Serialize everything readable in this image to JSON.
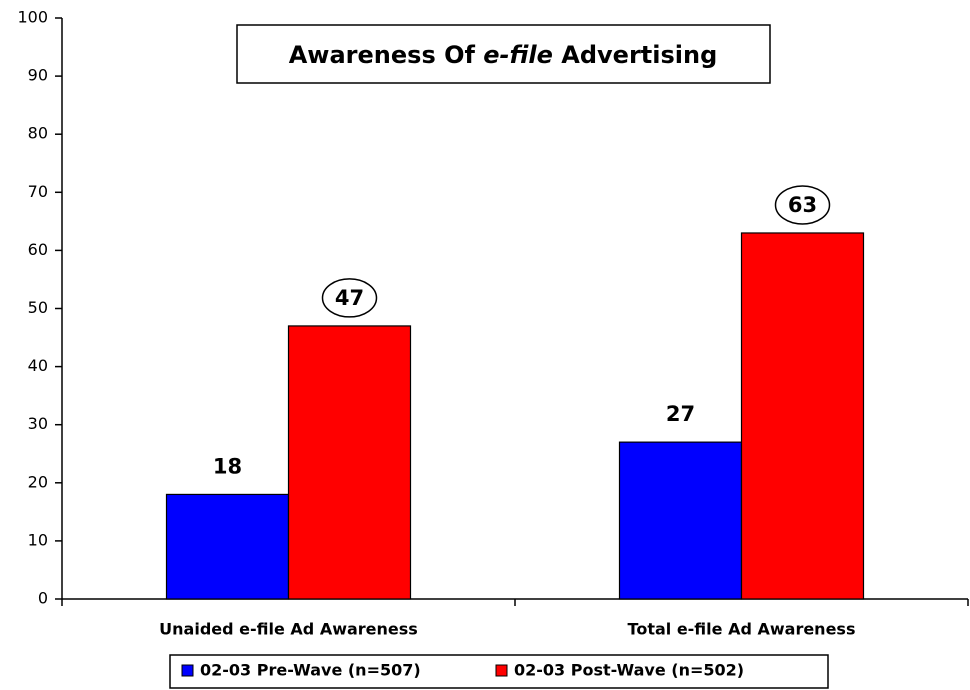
{
  "chart_data": {
    "type": "bar",
    "title": [
      {
        "text": "Awareness Of "
      },
      {
        "text": "e-file",
        "italic": true
      },
      {
        "text": " Advertising"
      }
    ],
    "categories": [
      "Unaided e-file Ad Awareness",
      "Total e-file Ad Awareness"
    ],
    "series": [
      {
        "name": "02-03 Pre-Wave (n=507)",
        "color": "#0000ff",
        "values": [
          18,
          27
        ]
      },
      {
        "name": "02-03 Post-Wave (n=502)",
        "color": "#ff0000",
        "values": [
          47,
          63
        ],
        "circled": true
      }
    ],
    "ylim": [
      0,
      100
    ],
    "yticks": [
      0,
      10,
      20,
      30,
      40,
      50,
      60,
      70,
      80,
      90,
      100
    ],
    "grid": false
  }
}
